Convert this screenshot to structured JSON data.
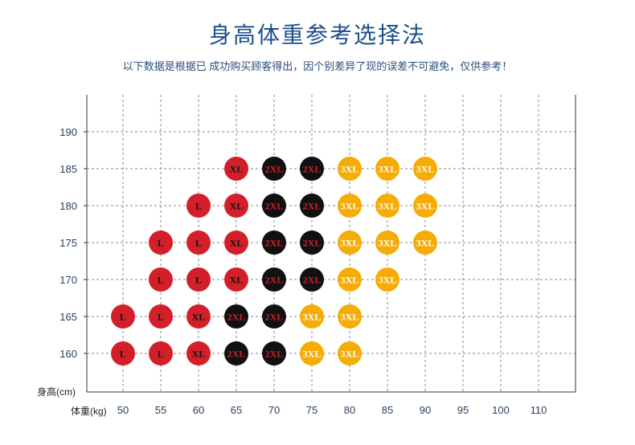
{
  "title": "身高体重参考选择法",
  "subtitle": "以下数据是根据已 成功购买顾客得出，因个别差异了现的误差不可避免，仅供参考！",
  "colors": {
    "L": "#d31f2a",
    "XL": "#d31f2a",
    "2XL": "#111111",
    "3XL": "#f5ac07",
    "label_on_red": "#111111",
    "label_on_black": "#d31f2a",
    "label_on_yellow": "#ffffff"
  },
  "chart_data": {
    "type": "scatter",
    "xlabel": "体重(kg)",
    "ylabel": "身高(cm)",
    "x_ticks": [
      50,
      55,
      60,
      65,
      70,
      75,
      80,
      85,
      90,
      95,
      100,
      110
    ],
    "y_ticks": [
      160,
      165,
      170,
      175,
      180,
      185,
      190
    ],
    "grid": true,
    "points": [
      {
        "x": 50,
        "y": 160,
        "size": "L"
      },
      {
        "x": 55,
        "y": 160,
        "size": "L"
      },
      {
        "x": 60,
        "y": 160,
        "size": "XL"
      },
      {
        "x": 65,
        "y": 160,
        "size": "2XL"
      },
      {
        "x": 70,
        "y": 160,
        "size": "2XL"
      },
      {
        "x": 75,
        "y": 160,
        "size": "3XL"
      },
      {
        "x": 80,
        "y": 160,
        "size": "3XL"
      },
      {
        "x": 50,
        "y": 165,
        "size": "L"
      },
      {
        "x": 55,
        "y": 165,
        "size": "L"
      },
      {
        "x": 60,
        "y": 165,
        "size": "XL"
      },
      {
        "x": 65,
        "y": 165,
        "size": "2XL"
      },
      {
        "x": 70,
        "y": 165,
        "size": "2XL"
      },
      {
        "x": 75,
        "y": 165,
        "size": "3XL"
      },
      {
        "x": 80,
        "y": 165,
        "size": "3XL"
      },
      {
        "x": 55,
        "y": 170,
        "size": "L"
      },
      {
        "x": 60,
        "y": 170,
        "size": "L"
      },
      {
        "x": 65,
        "y": 170,
        "size": "XL"
      },
      {
        "x": 70,
        "y": 170,
        "size": "2XL"
      },
      {
        "x": 75,
        "y": 170,
        "size": "2XL"
      },
      {
        "x": 80,
        "y": 170,
        "size": "3XL"
      },
      {
        "x": 85,
        "y": 170,
        "size": "3XL"
      },
      {
        "x": 55,
        "y": 175,
        "size": "L"
      },
      {
        "x": 60,
        "y": 175,
        "size": "L"
      },
      {
        "x": 65,
        "y": 175,
        "size": "XL"
      },
      {
        "x": 70,
        "y": 175,
        "size": "2XL"
      },
      {
        "x": 75,
        "y": 175,
        "size": "2XL"
      },
      {
        "x": 80,
        "y": 175,
        "size": "3XL"
      },
      {
        "x": 85,
        "y": 175,
        "size": "3XL"
      },
      {
        "x": 90,
        "y": 175,
        "size": "3XL"
      },
      {
        "x": 60,
        "y": 180,
        "size": "L"
      },
      {
        "x": 65,
        "y": 180,
        "size": "XL"
      },
      {
        "x": 70,
        "y": 180,
        "size": "2XL"
      },
      {
        "x": 75,
        "y": 180,
        "size": "2XL"
      },
      {
        "x": 80,
        "y": 180,
        "size": "3XL"
      },
      {
        "x": 85,
        "y": 180,
        "size": "3XL"
      },
      {
        "x": 90,
        "y": 180,
        "size": "3XL"
      },
      {
        "x": 65,
        "y": 185,
        "size": "XL"
      },
      {
        "x": 70,
        "y": 185,
        "size": "2XL"
      },
      {
        "x": 75,
        "y": 185,
        "size": "2XL"
      },
      {
        "x": 80,
        "y": 185,
        "size": "3XL"
      },
      {
        "x": 85,
        "y": 185,
        "size": "3XL"
      },
      {
        "x": 90,
        "y": 185,
        "size": "3XL"
      }
    ]
  }
}
